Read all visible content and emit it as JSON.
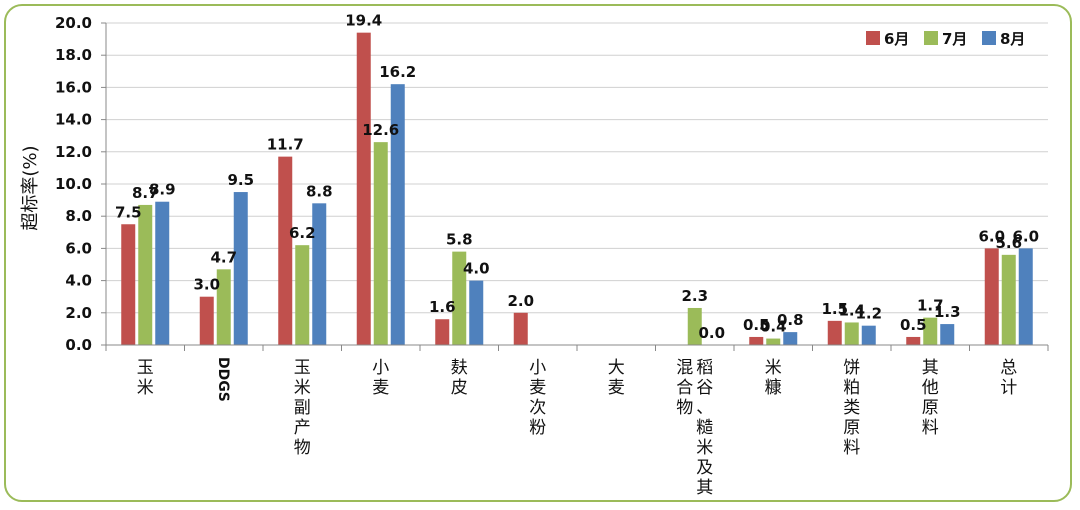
{
  "chart_data": {
    "type": "bar",
    "ylabel": "超标率(%)",
    "ylim": [
      0,
      20
    ],
    "yticks": [
      "0.0",
      "2.0",
      "4.0",
      "6.0",
      "8.0",
      "10.0",
      "12.0",
      "14.0",
      "16.0",
      "18.0",
      "20.0"
    ],
    "grid": true,
    "legend_position": "top-right",
    "categories": [
      {
        "name": "玉米",
        "cols": [
          "玉米"
        ]
      },
      {
        "name": "DDGS",
        "cols": [
          "DDGS"
        ]
      },
      {
        "name": "玉米副产物",
        "cols": [
          "玉米副产物"
        ]
      },
      {
        "name": "小麦",
        "cols": [
          "小麦"
        ]
      },
      {
        "name": "麸皮",
        "cols": [
          "麸皮"
        ]
      },
      {
        "name": "小麦次粉",
        "cols": [
          "小麦次粉"
        ]
      },
      {
        "name": "大麦",
        "cols": [
          "大麦"
        ]
      },
      {
        "name": "稻谷、糙米及其混合物",
        "cols": [
          "稻谷、糙米及其",
          "混合物"
        ]
      },
      {
        "name": "米糠",
        "cols": [
          "米糠"
        ]
      },
      {
        "name": "饼粕类原料",
        "cols": [
          "饼粕类原料"
        ]
      },
      {
        "name": "其他原料",
        "cols": [
          "其他原料"
        ]
      },
      {
        "name": "总计",
        "cols": [
          "总计"
        ]
      }
    ],
    "series": [
      {
        "name": "6月",
        "color": "#c0504d",
        "values": [
          7.5,
          3.0,
          11.7,
          19.4,
          1.6,
          2.0,
          null,
          null,
          0.5,
          1.5,
          0.5,
          6.0
        ],
        "labels": [
          "7.5",
          "3.0",
          "11.7",
          "19.4",
          "1.6",
          "2.0",
          null,
          null,
          "0.5",
          "1.5",
          "0.5",
          "6.0"
        ]
      },
      {
        "name": "7月",
        "color": "#9bbb59",
        "values": [
          8.7,
          4.7,
          6.2,
          12.6,
          5.8,
          null,
          null,
          2.3,
          0.4,
          1.4,
          1.7,
          5.6
        ],
        "labels": [
          "8.7",
          "4.7",
          "6.2",
          "12.6",
          "5.8",
          null,
          null,
          "2.3",
          "0.4",
          "1.4",
          "1.7",
          "5.6"
        ]
      },
      {
        "name": "8月",
        "color": "#4f81bd",
        "values": [
          8.9,
          9.5,
          8.8,
          16.2,
          4.0,
          null,
          null,
          0.0,
          0.8,
          1.2,
          1.3,
          6.0
        ],
        "labels": [
          "8.9",
          "9.5",
          "8.8",
          "16.2",
          "4.0",
          null,
          null,
          "0.0",
          "0.8",
          "1.2",
          "1.3",
          "6.0"
        ]
      }
    ]
  }
}
